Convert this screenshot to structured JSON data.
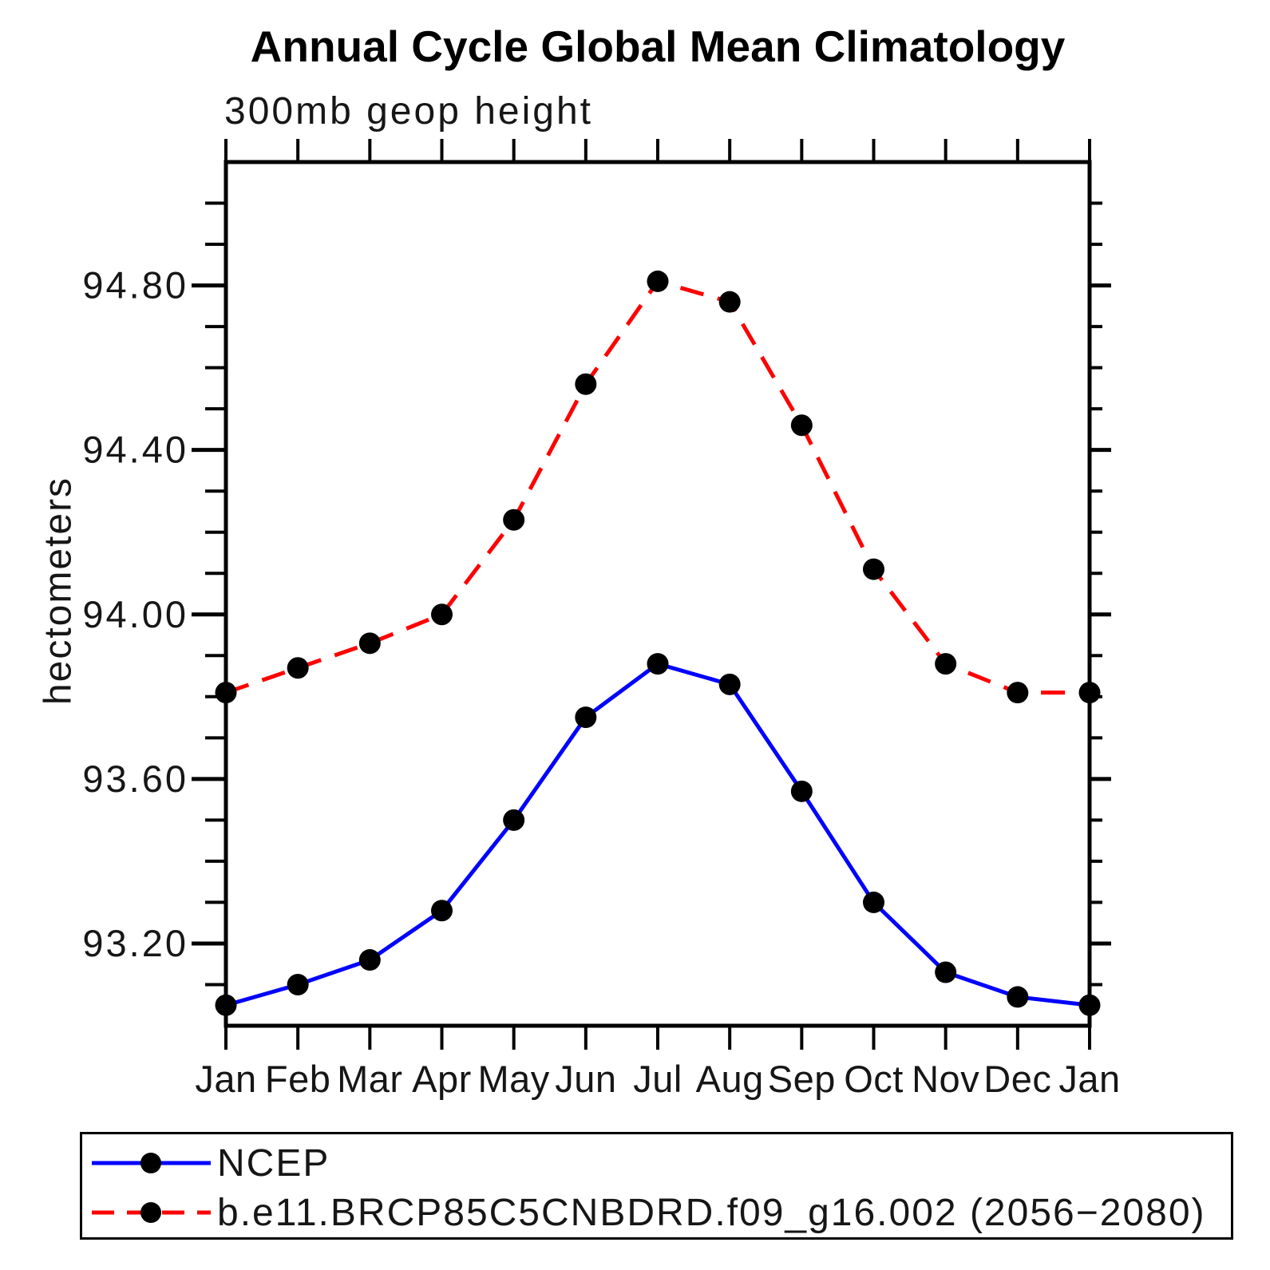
{
  "title": "Annual Cycle Global Mean Climatology",
  "subtitle": "300mb geop height",
  "y_axis_title": "hectometers",
  "chart_data": {
    "type": "line",
    "categories": [
      "Jan",
      "Feb",
      "Mar",
      "Apr",
      "May",
      "Jun",
      "Jul",
      "Aug",
      "Sep",
      "Oct",
      "Nov",
      "Dec",
      "Jan"
    ],
    "series": [
      {
        "name": "NCEP",
        "line_color": "#0000ff",
        "line_style": "solid",
        "marker": "filled-circle",
        "marker_color": "#000000",
        "values": [
          93.05,
          93.1,
          93.16,
          93.28,
          93.5,
          93.75,
          93.88,
          93.83,
          93.57,
          93.3,
          93.13,
          93.07,
          93.05
        ]
      },
      {
        "name": "b.e11.BRCP85C5CNBDRD.f09_g16.002 (2056−2080)",
        "line_color": "#ff0000",
        "line_style": "dashed",
        "marker": "filled-circle",
        "marker_color": "#000000",
        "values": [
          93.81,
          93.87,
          93.93,
          94.0,
          94.23,
          94.56,
          94.81,
          94.76,
          94.46,
          94.11,
          93.88,
          93.81,
          93.81
        ]
      }
    ],
    "xlabel": "",
    "ylabel": "hectometers",
    "ylim": [
      93.0,
      95.1
    ],
    "ytick_labels": [
      "93.20",
      "93.60",
      "94.00",
      "94.40",
      "94.80"
    ],
    "ytick_minor_step": 0.1,
    "grid": false,
    "legend_position": "bottom-left-box",
    "axis_color": "#000000",
    "text_color": "#161616"
  }
}
